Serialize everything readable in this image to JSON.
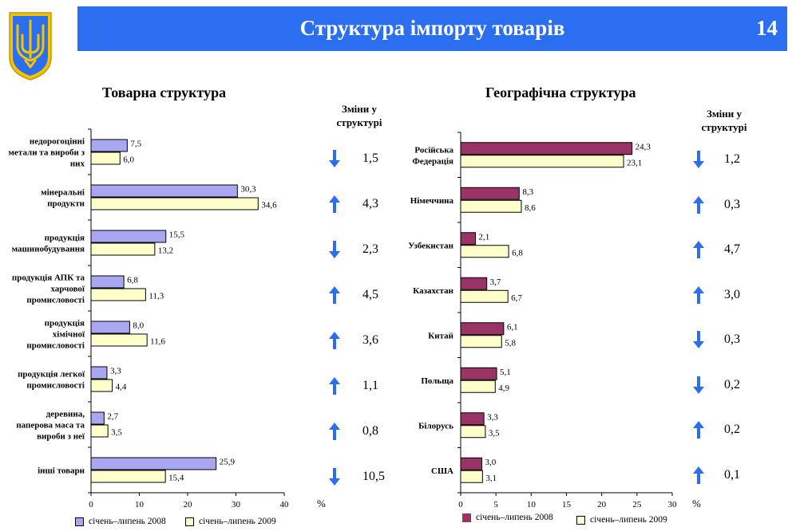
{
  "header": {
    "title": "Структура імпорту товарів",
    "page_number": "14"
  },
  "emblem": {
    "name": "trident-emblem-icon",
    "shield_color": "#2b6ff0",
    "trident_color": "#f2c500"
  },
  "unit": "%",
  "colors": {
    "commodity_2008": "#a9a6f2",
    "commodity_2009": "#ffffcc",
    "geo_2008": "#993366",
    "geo_2009": "#ffffcc",
    "arrow": "#2b6ff0"
  },
  "commodity": {
    "title": "Товарна структура",
    "changes_header": [
      "Зміни у",
      "структурі"
    ]
  },
  "geography": {
    "title": "Географічна структура",
    "changes_header": [
      "Зміни у",
      "структурі"
    ]
  },
  "chart_data": [
    {
      "type": "bar",
      "orientation": "horizontal",
      "title": "Товарна структура",
      "categories": [
        [
          "недорогоцінні",
          "метали та вироби з",
          "них"
        ],
        [
          "мінеральні",
          "продукти"
        ],
        [
          "продукція",
          "машинобудування"
        ],
        [
          "продукція АПК та",
          "харчової",
          "промисловості"
        ],
        [
          "продукція",
          "хімічної",
          "промисловості"
        ],
        [
          "продукція легкої",
          "промисловості"
        ],
        [
          "деревина,",
          "паперова маса та",
          "вироби з неї"
        ],
        [
          "інші товари"
        ]
      ],
      "series": [
        {
          "name": "січень–липень 2008",
          "values": [
            7.5,
            30.3,
            15.5,
            6.8,
            8.0,
            3.3,
            2.7,
            25.9
          ],
          "labels": [
            "7,5",
            "30,3",
            "15,5",
            "6,8",
            "8,0",
            "3,3",
            "2,7",
            "25,9"
          ]
        },
        {
          "name": "січень–липень 2009",
          "values": [
            6.0,
            34.6,
            13.2,
            11.3,
            11.6,
            4.4,
            3.5,
            15.4
          ],
          "labels": [
            "6,0",
            "34,6",
            "13,2",
            "11,3",
            "11,6",
            "4,4",
            "3,5",
            "15,4"
          ]
        }
      ],
      "xlim": [
        0,
        40
      ],
      "xticks": [
        "0",
        "10",
        "20",
        "30",
        "40"
      ],
      "xlabel": "%",
      "changes": [
        {
          "dir": "down",
          "value": "1,5"
        },
        {
          "dir": "up",
          "value": "4,3"
        },
        {
          "dir": "down",
          "value": "2,3"
        },
        {
          "dir": "up",
          "value": "4,5"
        },
        {
          "dir": "up",
          "value": "3,6"
        },
        {
          "dir": "up",
          "value": "1,1"
        },
        {
          "dir": "up",
          "value": "0,8"
        },
        {
          "dir": "down",
          "value": "10,5"
        }
      ],
      "legend_position": "bottom"
    },
    {
      "type": "bar",
      "orientation": "horizontal",
      "title": "Географічна структура",
      "categories": [
        [
          "Російська",
          "Федерація"
        ],
        [
          "Німеччина"
        ],
        [
          "Узбекистан"
        ],
        [
          "Казахстан"
        ],
        [
          "Китай"
        ],
        [
          "Польща"
        ],
        [
          "Білорусь"
        ],
        [
          "США"
        ]
      ],
      "series": [
        {
          "name": "січень–липень 2008",
          "values": [
            24.3,
            8.3,
            2.1,
            3.7,
            6.1,
            5.1,
            3.3,
            3.0
          ],
          "labels": [
            "24,3",
            "8,3",
            "2,1",
            "3,7",
            "6,1",
            "5,1",
            "3,3",
            "3,0"
          ]
        },
        {
          "name": "січень–липень 2009",
          "values": [
            23.1,
            8.6,
            6.8,
            6.7,
            5.8,
            4.9,
            3.5,
            3.1
          ],
          "labels": [
            "23,1",
            "8,6",
            "6,8",
            "6,7",
            "5,8",
            "4,9",
            "3,5",
            "3,1"
          ]
        }
      ],
      "xlim": [
        0,
        30
      ],
      "xticks": [
        "0",
        "5",
        "10",
        "15",
        "20",
        "25",
        "30"
      ],
      "xlabel": "%",
      "changes": [
        {
          "dir": "down",
          "value": "1,2"
        },
        {
          "dir": "up",
          "value": "0,3"
        },
        {
          "dir": "up",
          "value": "4,7"
        },
        {
          "dir": "up",
          "value": "3,0"
        },
        {
          "dir": "down",
          "value": "0,3"
        },
        {
          "dir": "down",
          "value": "0,2"
        },
        {
          "dir": "up",
          "value": "0,2"
        },
        {
          "dir": "up",
          "value": "0,1"
        }
      ],
      "legend_position": "bottom"
    }
  ]
}
